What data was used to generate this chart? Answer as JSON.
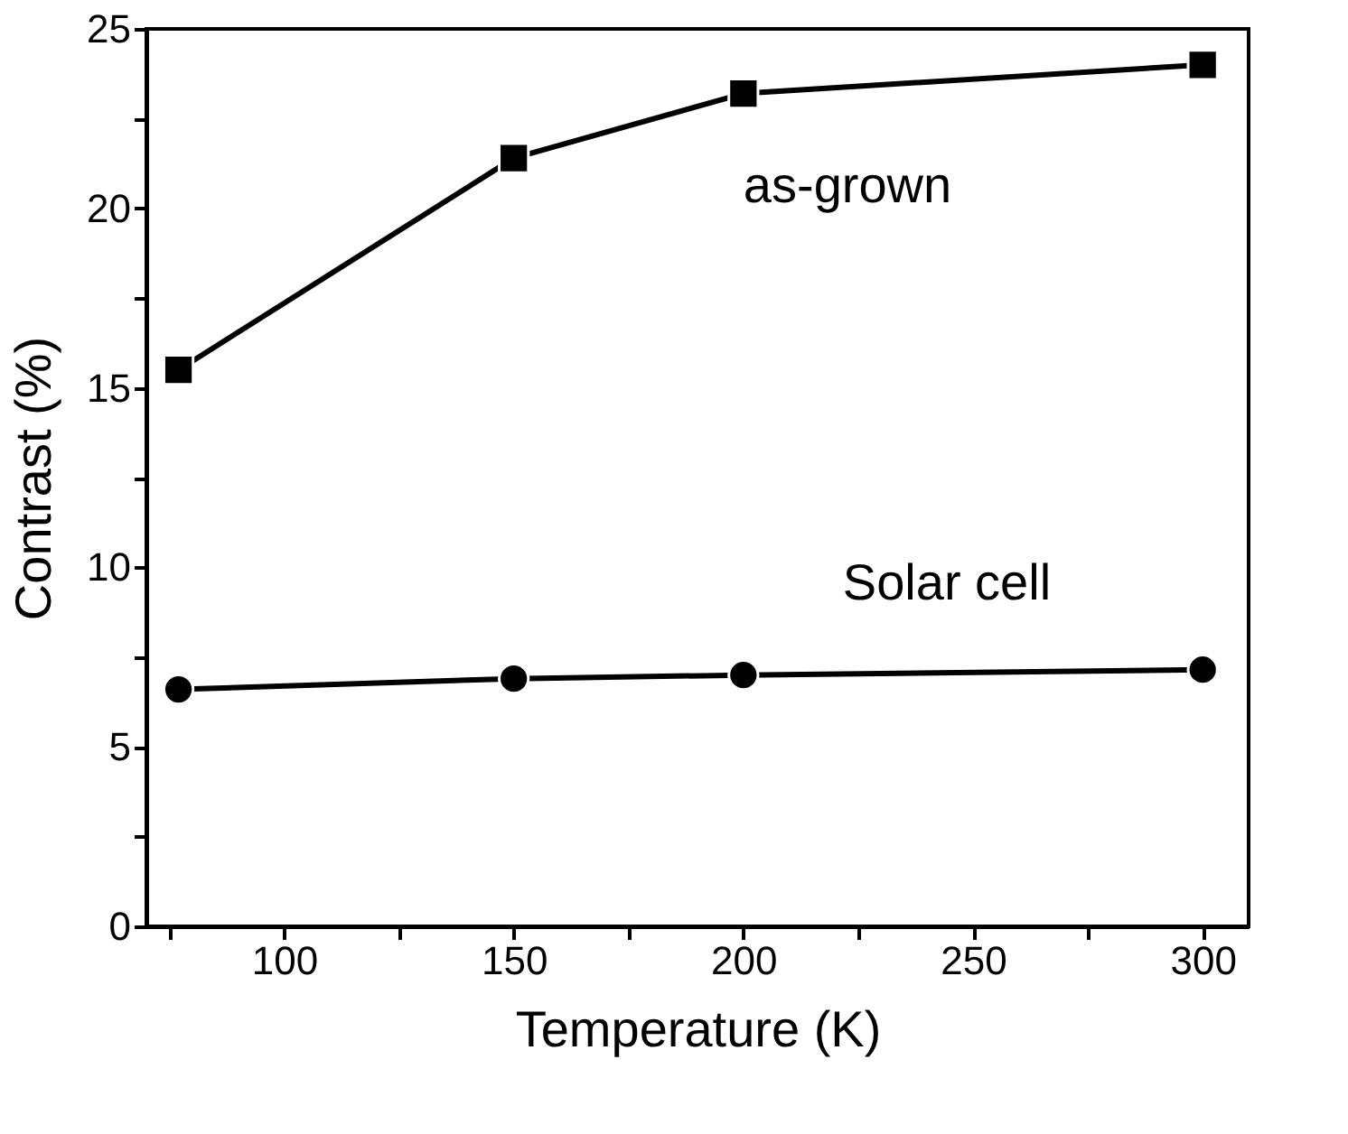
{
  "chart_data": {
    "type": "line",
    "xlabel": "Temperature (K)",
    "ylabel": "Contrast (%)",
    "x": [
      77,
      150,
      200,
      300
    ],
    "series": [
      {
        "name": "as-grown",
        "color": "#000000",
        "marker": "square",
        "values": [
          15.5,
          21.4,
          23.2,
          24.0
        ]
      },
      {
        "name": "Solar cell",
        "color": "#000000",
        "marker": "circle",
        "values": [
          6.6,
          6.9,
          7.0,
          7.15
        ]
      }
    ],
    "xlim": [
      70,
      310
    ],
    "xticks": [
      {
        "value": 75,
        "label": null
      },
      100,
      {
        "value": 125,
        "label": null
      },
      150,
      {
        "value": 175,
        "label": null
      },
      200,
      {
        "value": 225,
        "label": null
      },
      250,
      {
        "value": 275,
        "label": null
      },
      300
    ],
    "ylim": [
      0,
      25
    ],
    "yticks": [
      0,
      {
        "value": 2.5,
        "label": null
      },
      5,
      {
        "value": 7.5,
        "label": null
      },
      10,
      {
        "value": 12.5,
        "label": null
      },
      15,
      {
        "value": 17.5,
        "label": null
      },
      20,
      {
        "value": 22.5,
        "label": null
      },
      25
    ],
    "grid": false,
    "line_style": "solid"
  }
}
